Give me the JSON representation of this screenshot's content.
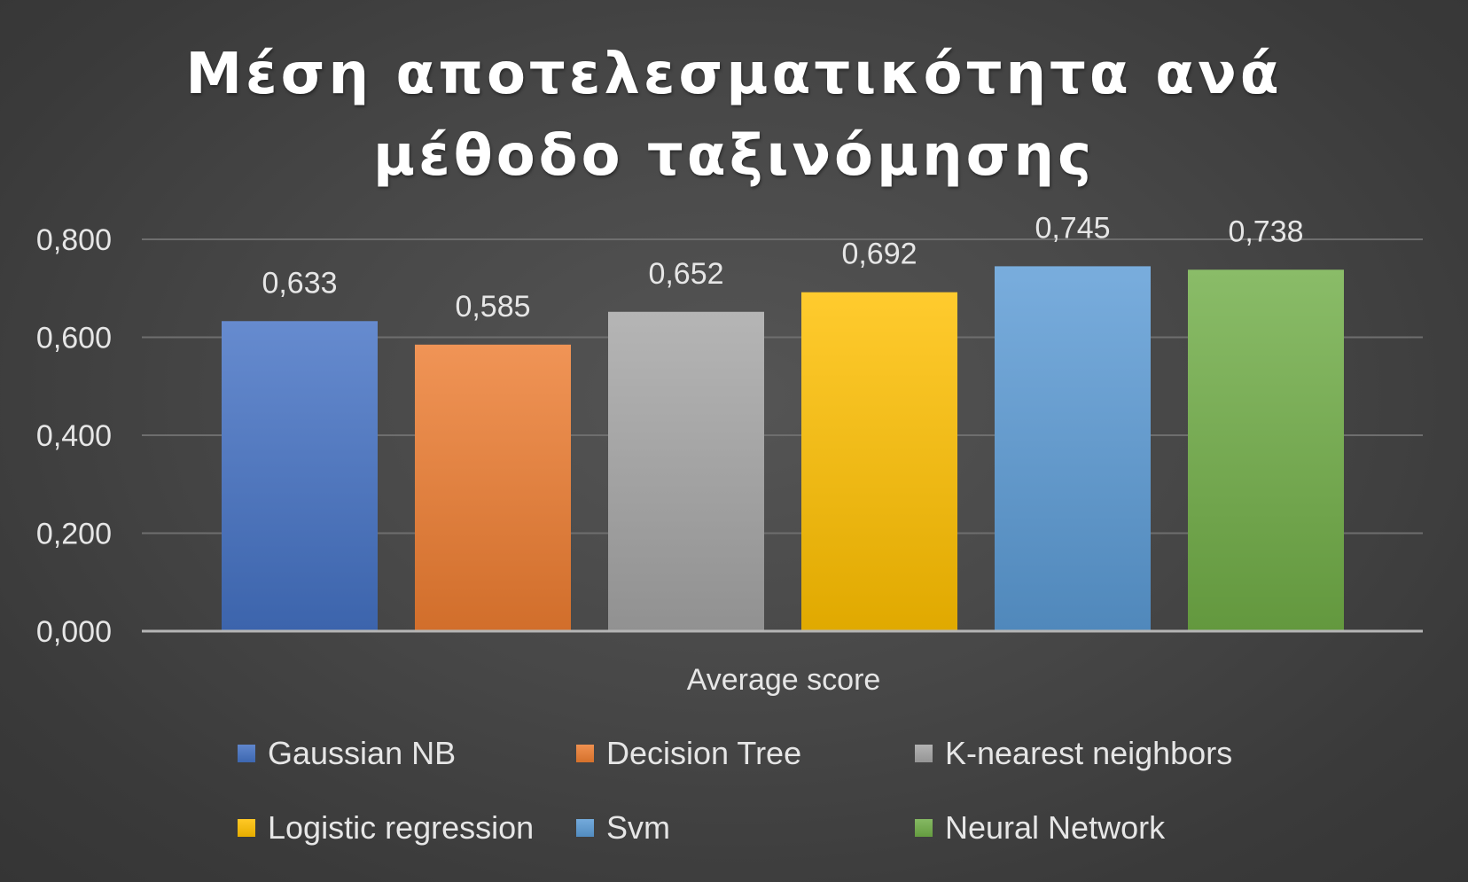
{
  "chart_data": {
    "type": "bar",
    "title_lines": [
      "Μέση αποτελεσματικότητα ανά",
      "μέθοδο ταξινόμησης"
    ],
    "xlabel": "Average score",
    "ylabel": "",
    "ylim": [
      0,
      0.8
    ],
    "yticks": [
      0,
      0.2,
      0.4,
      0.6,
      0.8
    ],
    "ytick_labels": [
      "0,000",
      "0,200",
      "0,400",
      "0,600",
      "0,800"
    ],
    "grid": true,
    "legend_position": "bottom",
    "series": [
      {
        "name": "Gaussian NB",
        "value": 0.633,
        "label": "0,633",
        "color": "#4472C4"
      },
      {
        "name": "Decision Tree",
        "value": 0.585,
        "label": "0,585",
        "color": "#ED7D31"
      },
      {
        "name": "K-nearest neighbors",
        "value": 0.652,
        "label": "0,652",
        "color": "#A5A5A5"
      },
      {
        "name": "Logistic regression",
        "value": 0.692,
        "label": "0,692",
        "color": "#FFC000"
      },
      {
        "name": "Svm",
        "value": 0.745,
        "label": "0,745",
        "color": "#5B9BD5"
      },
      {
        "name": "Neural Network",
        "value": 0.738,
        "label": "0,738",
        "color": "#70AD47"
      }
    ]
  }
}
